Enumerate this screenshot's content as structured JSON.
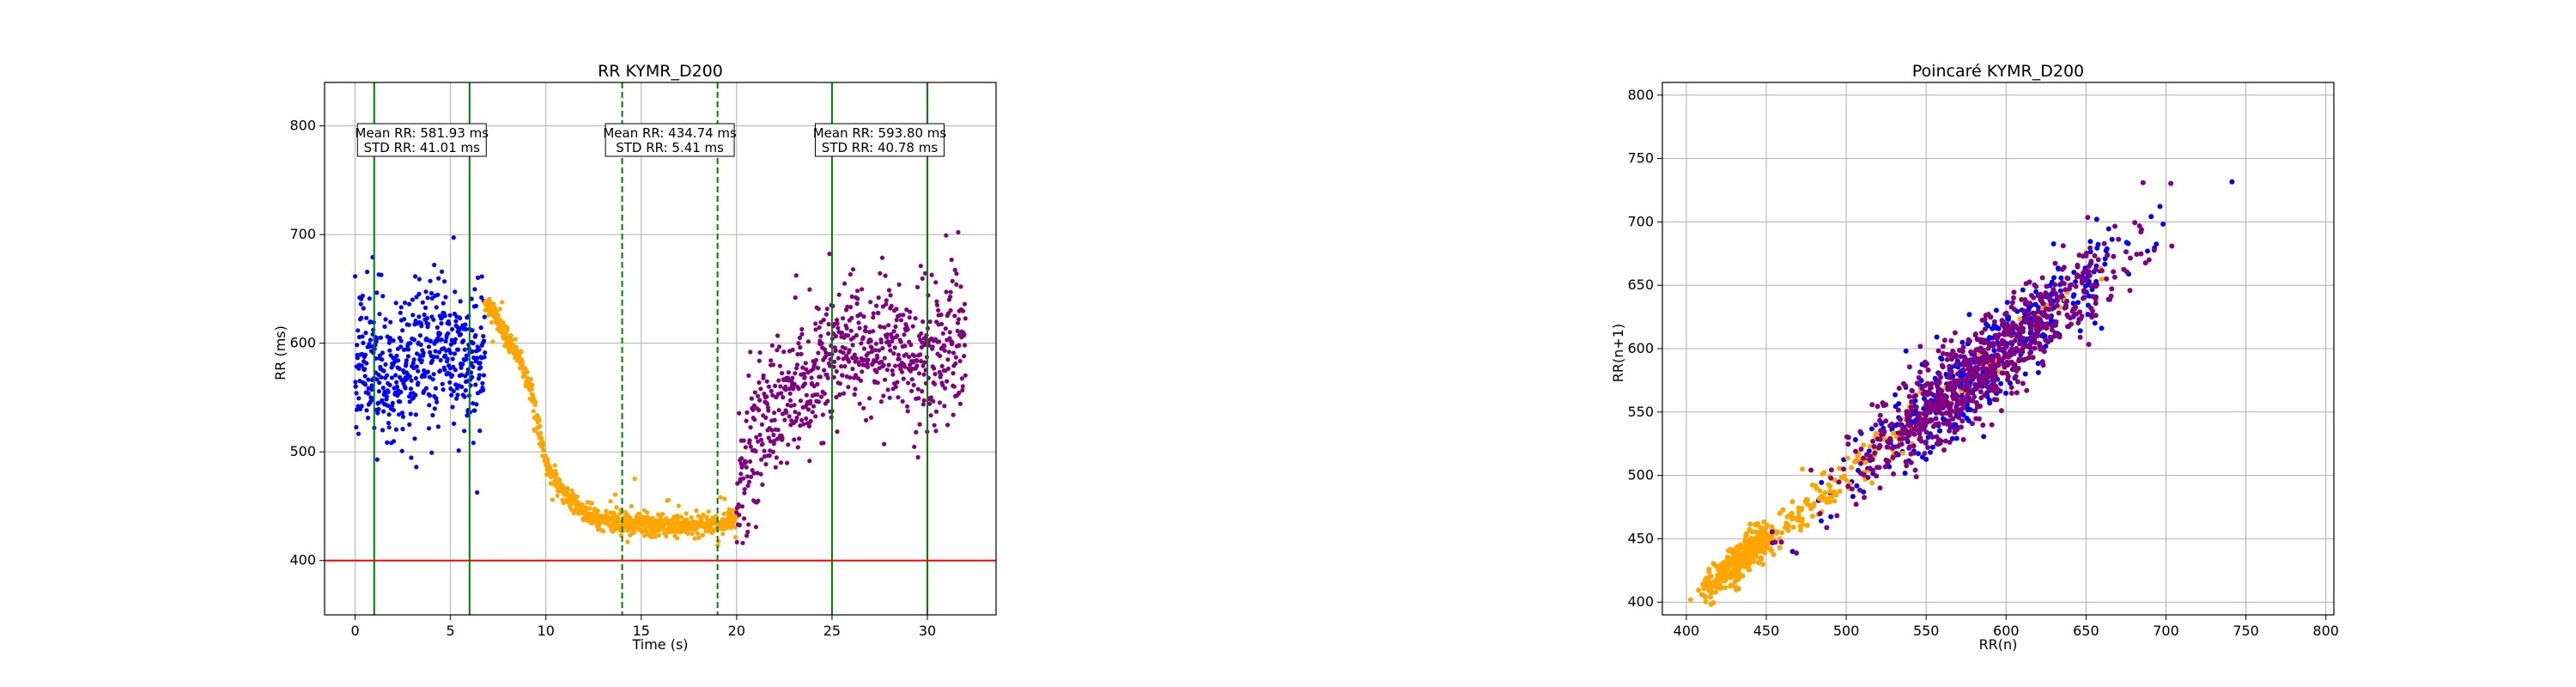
{
  "chart_data": [
    {
      "type": "scatter",
      "title": "RR KYMR_D200",
      "xlabel": "Time (s)",
      "ylabel": "RR (ms)",
      "xlim": [
        -1.6,
        33.6
      ],
      "ylim": [
        350,
        840
      ],
      "xticks": [
        0,
        5,
        10,
        15,
        20,
        25,
        30
      ],
      "yticks": [
        400,
        500,
        600,
        700,
        800
      ],
      "grid": true,
      "colors": {
        "baseline": "#0000ff",
        "stimulus": "#ffa500",
        "recovery": "#800080",
        "threshold": "#ff0000",
        "window": "#008000"
      },
      "threshold_line": 400,
      "windows": [
        {
          "start": 1,
          "end": 6,
          "style": "solid"
        },
        {
          "start": 14,
          "end": 19,
          "style": "dashed"
        },
        {
          "start": 25,
          "end": 30,
          "style": "solid"
        }
      ],
      "annotations": [
        {
          "x": 3.5,
          "line1": "Mean RR: 581.93 ms",
          "line2": "STD RR: 41.01 ms"
        },
        {
          "x": 16.5,
          "line1": "Mean RR: 434.74 ms",
          "line2": "STD RR: 5.41 ms"
        },
        {
          "x": 27.5,
          "line1": "Mean RR: 593.80 ms",
          "line2": "STD RR: 40.78 ms"
        }
      ],
      "series": [
        {
          "color": "#0000ff",
          "profile": [
            [
              0,
              590
            ],
            [
              1,
              585
            ],
            [
              2,
              570
            ],
            [
              3,
              580
            ],
            [
              4,
              595
            ],
            [
              5,
              590
            ],
            [
              6,
              585
            ],
            [
              6.8,
              595
            ]
          ],
          "spread": 42,
          "points": 520
        },
        {
          "color": "#ffa500",
          "profile": [
            [
              6.8,
              640
            ],
            [
              7.5,
              620
            ],
            [
              8.5,
              590
            ],
            [
              9.3,
              550
            ],
            [
              10,
              490
            ],
            [
              11,
              460
            ],
            [
              12,
              445
            ],
            [
              13,
              438
            ],
            [
              15,
              433
            ],
            [
              17,
              432
            ],
            [
              19,
              434
            ],
            [
              20,
              440
            ]
          ],
          "spread": 6,
          "points": 850
        },
        {
          "color": "#800080",
          "profile": [
            [
              20,
              450
            ],
            [
              20.5,
              500
            ],
            [
              21.5,
              530
            ],
            [
              22.5,
              540
            ],
            [
              23.5,
              560
            ],
            [
              24.5,
              580
            ],
            [
              26,
              595
            ],
            [
              28,
              600
            ],
            [
              30,
              590
            ],
            [
              32,
              600
            ]
          ],
          "spread": 40,
          "points": 720
        }
      ]
    },
    {
      "type": "scatter",
      "title": "Poincaré KYMR_D200",
      "xlabel": "RR(n)",
      "ylabel": "RR(n+1)",
      "xlim": [
        385,
        805
      ],
      "ylim": [
        390,
        810
      ],
      "xticks": [
        400,
        450,
        500,
        550,
        600,
        650,
        700,
        750,
        800
      ],
      "yticks": [
        400,
        450,
        500,
        550,
        600,
        650,
        700,
        750,
        800
      ],
      "grid": true,
      "series": [
        {
          "color": "#0000ff",
          "center": 590,
          "spread": 40,
          "points": 450
        },
        {
          "color": "#ffa500",
          "center": 436,
          "spread": 12,
          "points": 500
        },
        {
          "color": "#800080",
          "center": 585,
          "spread": 42,
          "points": 800
        }
      ]
    }
  ]
}
